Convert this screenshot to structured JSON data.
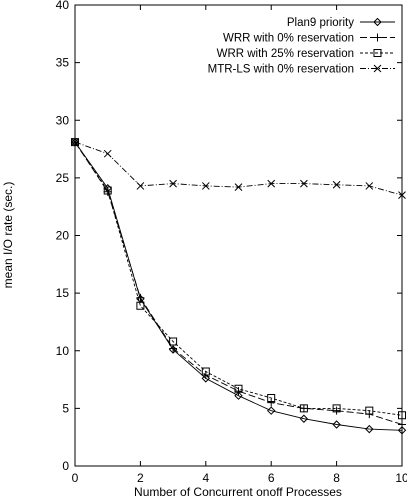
{
  "chart_data": {
    "type": "line",
    "title": "",
    "xlabel": "Number of Concurrent onoff Processes",
    "ylabel": "mean I/O rate (sec.)",
    "xlim": [
      0,
      10
    ],
    "ylim": [
      0,
      40
    ],
    "xticks": [
      0,
      2,
      4,
      6,
      8,
      10
    ],
    "yticks": [
      0,
      5,
      10,
      15,
      20,
      25,
      30,
      35,
      40
    ],
    "grid": false,
    "legend": "top-right",
    "x": [
      0,
      1,
      2,
      3,
      4,
      5,
      6,
      7,
      8,
      9,
      10
    ],
    "series": [
      {
        "name": "Plan9 priority",
        "marker": "diamond",
        "dash": "solid",
        "values": [
          28.1,
          24.1,
          14.5,
          10.1,
          7.6,
          6.1,
          4.8,
          4.1,
          3.6,
          3.2,
          3.1
        ]
      },
      {
        "name": "WRR with 0% reservation",
        "marker": "plus",
        "dash": "long-dash",
        "values": [
          28.1,
          23.8,
          14.6,
          10.2,
          7.9,
          6.5,
          5.5,
          5.0,
          4.8,
          4.5,
          3.6
        ]
      },
      {
        "name": "WRR with 25% reservation",
        "marker": "square",
        "dash": "short-dash",
        "values": [
          28.1,
          23.9,
          13.9,
          10.8,
          8.2,
          6.7,
          5.9,
          5.0,
          5.0,
          4.8,
          4.4
        ]
      },
      {
        "name": "MTR-LS with 0% reservation",
        "marker": "cross",
        "dash": "dash-dot",
        "values": [
          28.1,
          27.1,
          24.3,
          24.5,
          24.3,
          24.2,
          24.5,
          24.5,
          24.4,
          24.3,
          23.5
        ]
      }
    ]
  }
}
